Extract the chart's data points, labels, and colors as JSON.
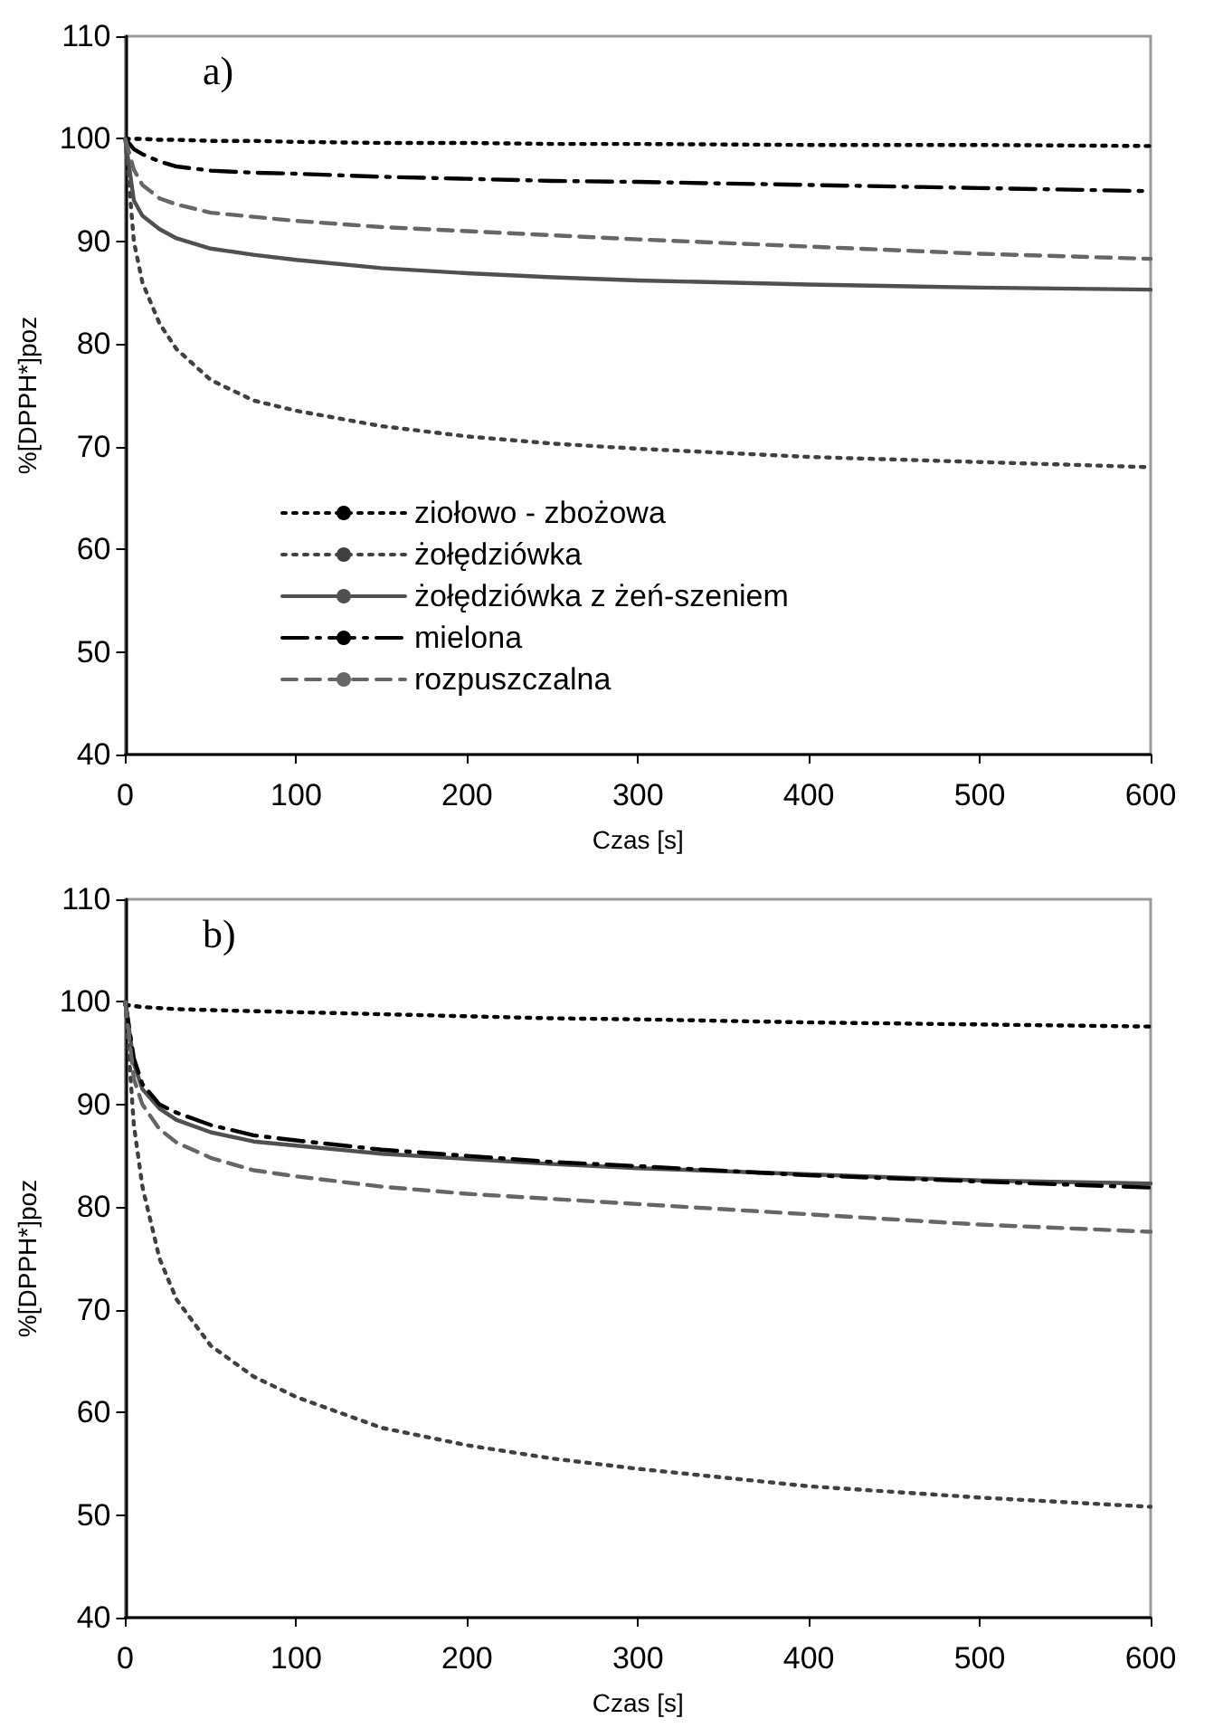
{
  "chart_data": [
    {
      "type": "line",
      "annotations": [
        "a)"
      ],
      "xlabel": "Czas [s]",
      "ylabel": "%[DPPH*]poz",
      "x": [
        0,
        5,
        10,
        20,
        30,
        50,
        75,
        100,
        150,
        200,
        250,
        300,
        400,
        500,
        600
      ],
      "xlim": [
        0,
        600
      ],
      "xticks": [
        0,
        100,
        200,
        300,
        400,
        500,
        600
      ],
      "ylim": [
        40,
        110
      ],
      "yticks": [
        40,
        50,
        60,
        70,
        80,
        90,
        100,
        110
      ],
      "grid": false,
      "legend": "bottom",
      "marker": "none",
      "series": [
        {
          "name": "ziołowo - zbożowa",
          "color": "#000000",
          "line_style": "dotted",
          "values": [
            100,
            100,
            100,
            99.9,
            99.9,
            99.8,
            99.8,
            99.7,
            99.6,
            99.6,
            99.5,
            99.5,
            99.4,
            99.4,
            99.3
          ]
        },
        {
          "name": "żołędziówka",
          "color": "#404040",
          "line_style": "dotted",
          "values": [
            100,
            90,
            86,
            82,
            79.5,
            76.5,
            74.5,
            73.5,
            72,
            71,
            70.3,
            69.8,
            69,
            68.5,
            68
          ]
        },
        {
          "name": "żołędziówka z żeń-szeniem",
          "color": "#505050",
          "line_style": "solid",
          "values": [
            100,
            94,
            92.5,
            91.2,
            90.3,
            89.3,
            88.7,
            88.2,
            87.4,
            86.9,
            86.5,
            86.2,
            85.8,
            85.5,
            85.3
          ]
        },
        {
          "name": "mielona",
          "color": "#000000",
          "line_style": "dashdot",
          "values": [
            100,
            99,
            98.5,
            97.8,
            97.3,
            96.9,
            96.7,
            96.6,
            96.3,
            96.1,
            95.9,
            95.8,
            95.5,
            95.2,
            94.9
          ]
        },
        {
          "name": "rozpuszczalna",
          "color": "#666666",
          "line_style": "dashed",
          "values": [
            100,
            97,
            95.5,
            94.2,
            93.6,
            92.8,
            92.4,
            92,
            91.4,
            91,
            90.6,
            90.2,
            89.5,
            88.8,
            88.3
          ]
        }
      ]
    },
    {
      "type": "line",
      "annotations": [
        "b)"
      ],
      "xlabel": "Czas [s]",
      "ylabel": "%[DPPH*]poz",
      "x": [
        0,
        5,
        10,
        20,
        30,
        50,
        75,
        100,
        150,
        200,
        250,
        300,
        400,
        500,
        600
      ],
      "xlim": [
        0,
        600
      ],
      "xticks": [
        0,
        100,
        200,
        300,
        400,
        500,
        600
      ],
      "ylim": [
        40,
        110
      ],
      "yticks": [
        40,
        50,
        60,
        70,
        80,
        90,
        100,
        110
      ],
      "grid": false,
      "legend": false,
      "marker": "none",
      "series": [
        {
          "color": "#000000",
          "line_style": "dotted",
          "values": [
            99.7,
            99.6,
            99.5,
            99.4,
            99.3,
            99.2,
            99.1,
            99,
            98.8,
            98.6,
            98.4,
            98.3,
            98,
            97.8,
            97.6
          ]
        },
        {
          "color": "#404040",
          "line_style": "dotted",
          "values": [
            100,
            88,
            82,
            75,
            71,
            66.5,
            63.5,
            61.5,
            58.5,
            56.8,
            55.5,
            54.5,
            52.8,
            51.7,
            50.8
          ]
        },
        {
          "color": "#505050",
          "line_style": "solid",
          "values": [
            100,
            94,
            91.5,
            89.6,
            88.5,
            87.3,
            86.4,
            86,
            85.2,
            84.7,
            84.2,
            83.8,
            83.2,
            82.6,
            82.3
          ]
        },
        {
          "color": "#000000",
          "line_style": "dashdot",
          "values": [
            100,
            94.5,
            92,
            90,
            89.2,
            88,
            87,
            86.5,
            85.6,
            85,
            84.4,
            84,
            83.1,
            82.5,
            81.9
          ]
        },
        {
          "color": "#666666",
          "line_style": "dashed",
          "values": [
            100,
            92.5,
            90,
            87.6,
            86.3,
            84.8,
            83.6,
            83,
            82,
            81.3,
            80.8,
            80.3,
            79.3,
            78.3,
            77.6
          ]
        }
      ]
    }
  ]
}
